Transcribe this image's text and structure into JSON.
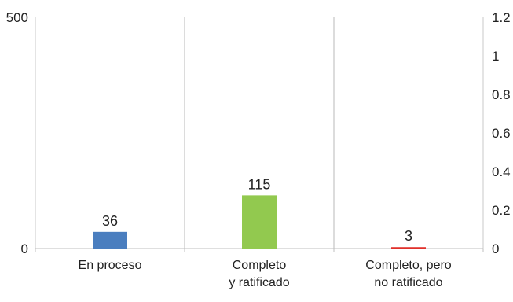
{
  "chart_data": {
    "type": "bar",
    "categories": [
      [
        "En proceso"
      ],
      [
        "Completo",
        "y ratificado"
      ],
      [
        "Completo, pero",
        "no ratificado"
      ]
    ],
    "values": [
      36,
      115,
      3
    ],
    "data_labels": [
      "36",
      "115",
      "3"
    ],
    "colors": [
      "#4a7ebf",
      "#92c94f",
      "#e0302a"
    ],
    "ylim": [
      0,
      500
    ],
    "yticks": [
      0,
      500
    ],
    "y2lim": [
      0,
      1.2
    ],
    "y2ticks": [
      "0",
      "0.2",
      "0.4",
      "0.6",
      "0.8",
      "1",
      "1.2"
    ],
    "grid": "vertical",
    "title": "",
    "xlabel": "",
    "ylabel": ""
  }
}
